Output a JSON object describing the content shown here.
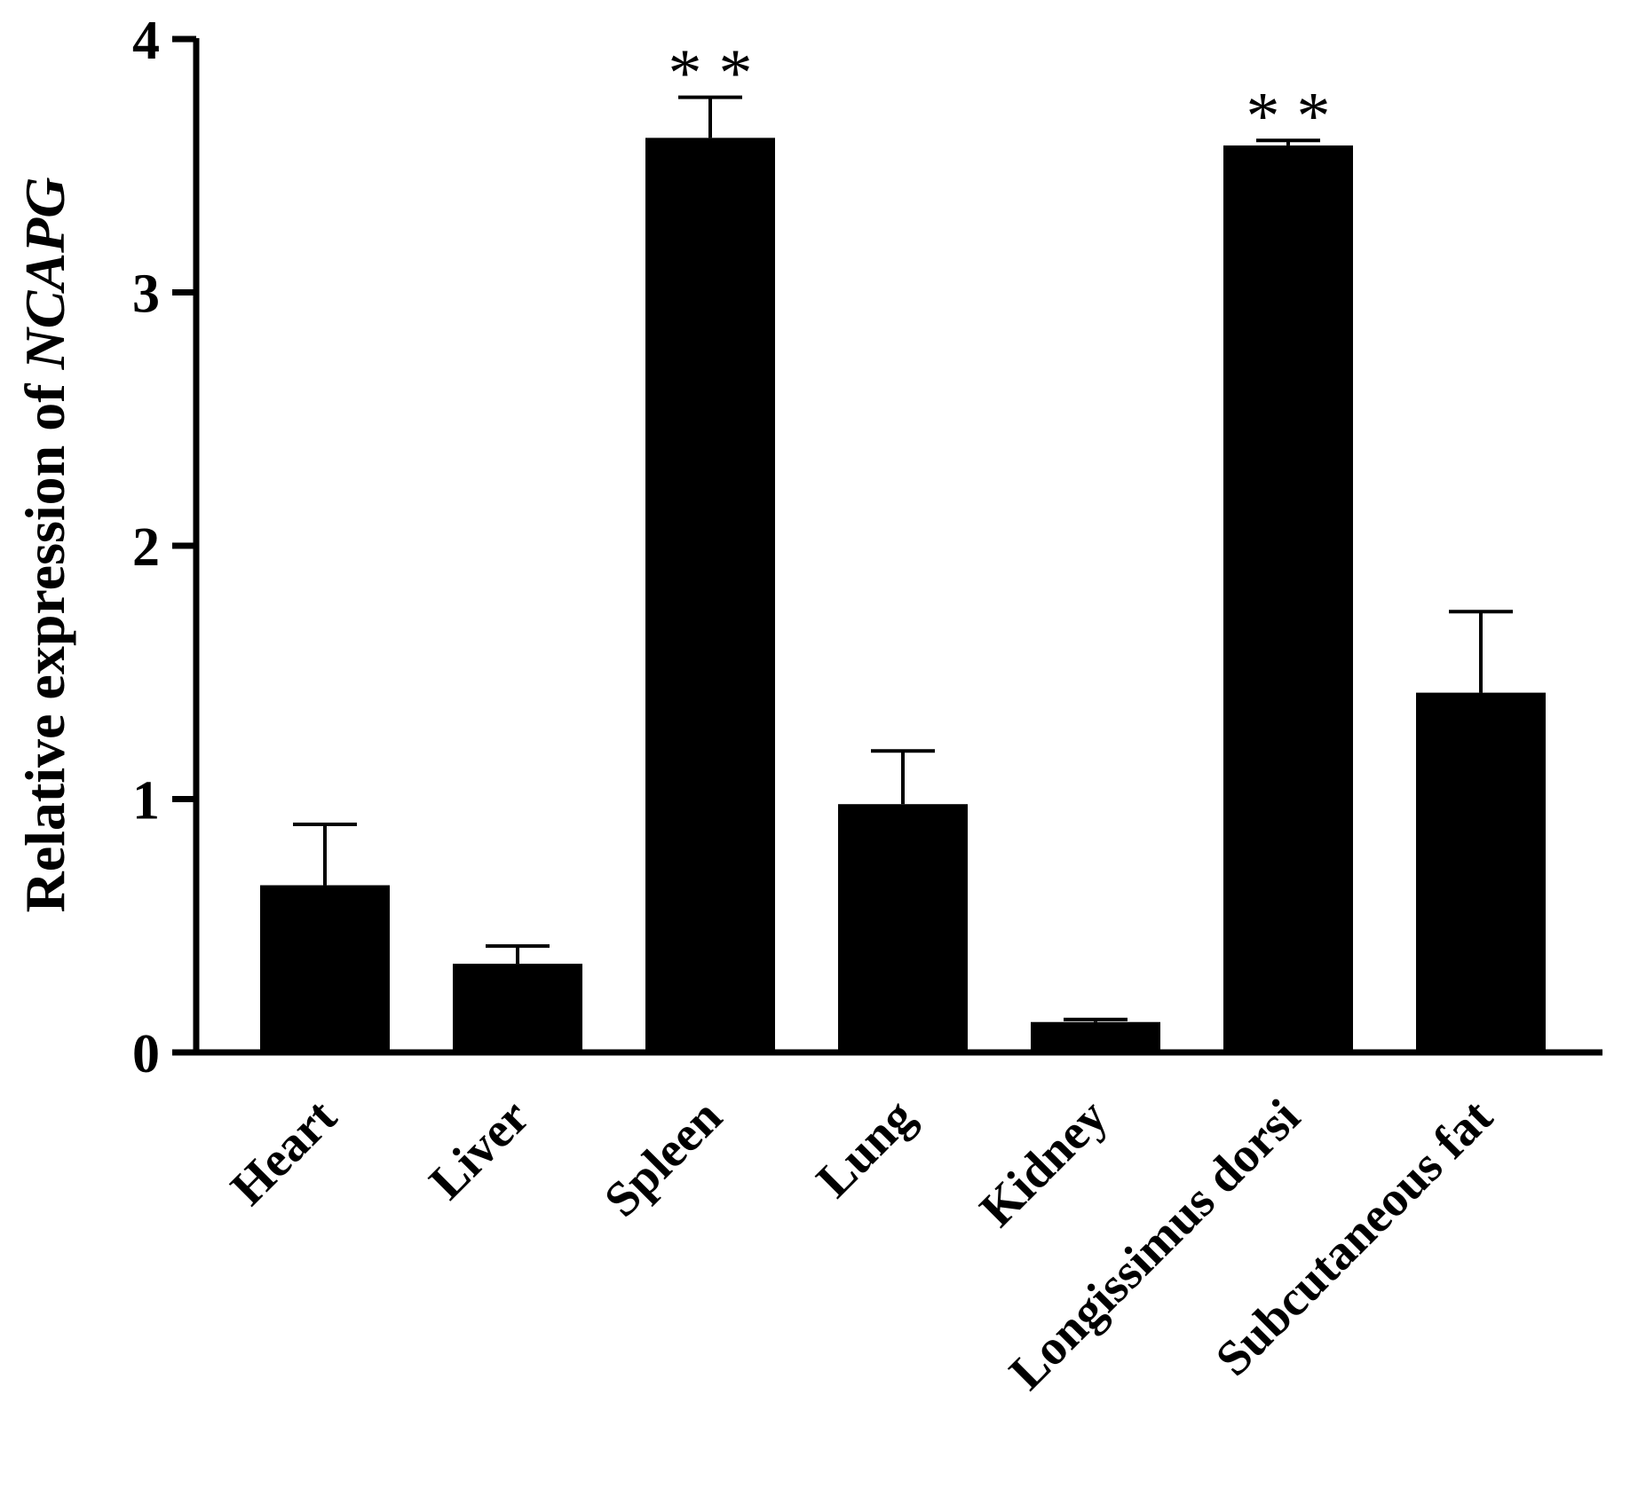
{
  "chart_data": {
    "type": "bar",
    "categories": [
      "Heart",
      "Liver",
      "Spleen",
      "Lung",
      "Kidney",
      "Longissimus dorsi",
      "Subcutaneous fat"
    ],
    "values": [
      0.66,
      0.35,
      3.61,
      0.98,
      0.12,
      3.58,
      1.42
    ],
    "errors": [
      0.24,
      0.07,
      0.16,
      0.21,
      0.01,
      0.02,
      0.32
    ],
    "annotations": [
      "",
      "",
      "* *",
      "",
      "",
      "* *",
      ""
    ],
    "ylabel": "Relative expression of ",
    "ylabel_italic": "NCAPG",
    "ylim": [
      0,
      4
    ],
    "yticks": [
      "0",
      "1",
      "2",
      "3",
      "4"
    ],
    "grid": false,
    "bar_color": "#000000"
  }
}
